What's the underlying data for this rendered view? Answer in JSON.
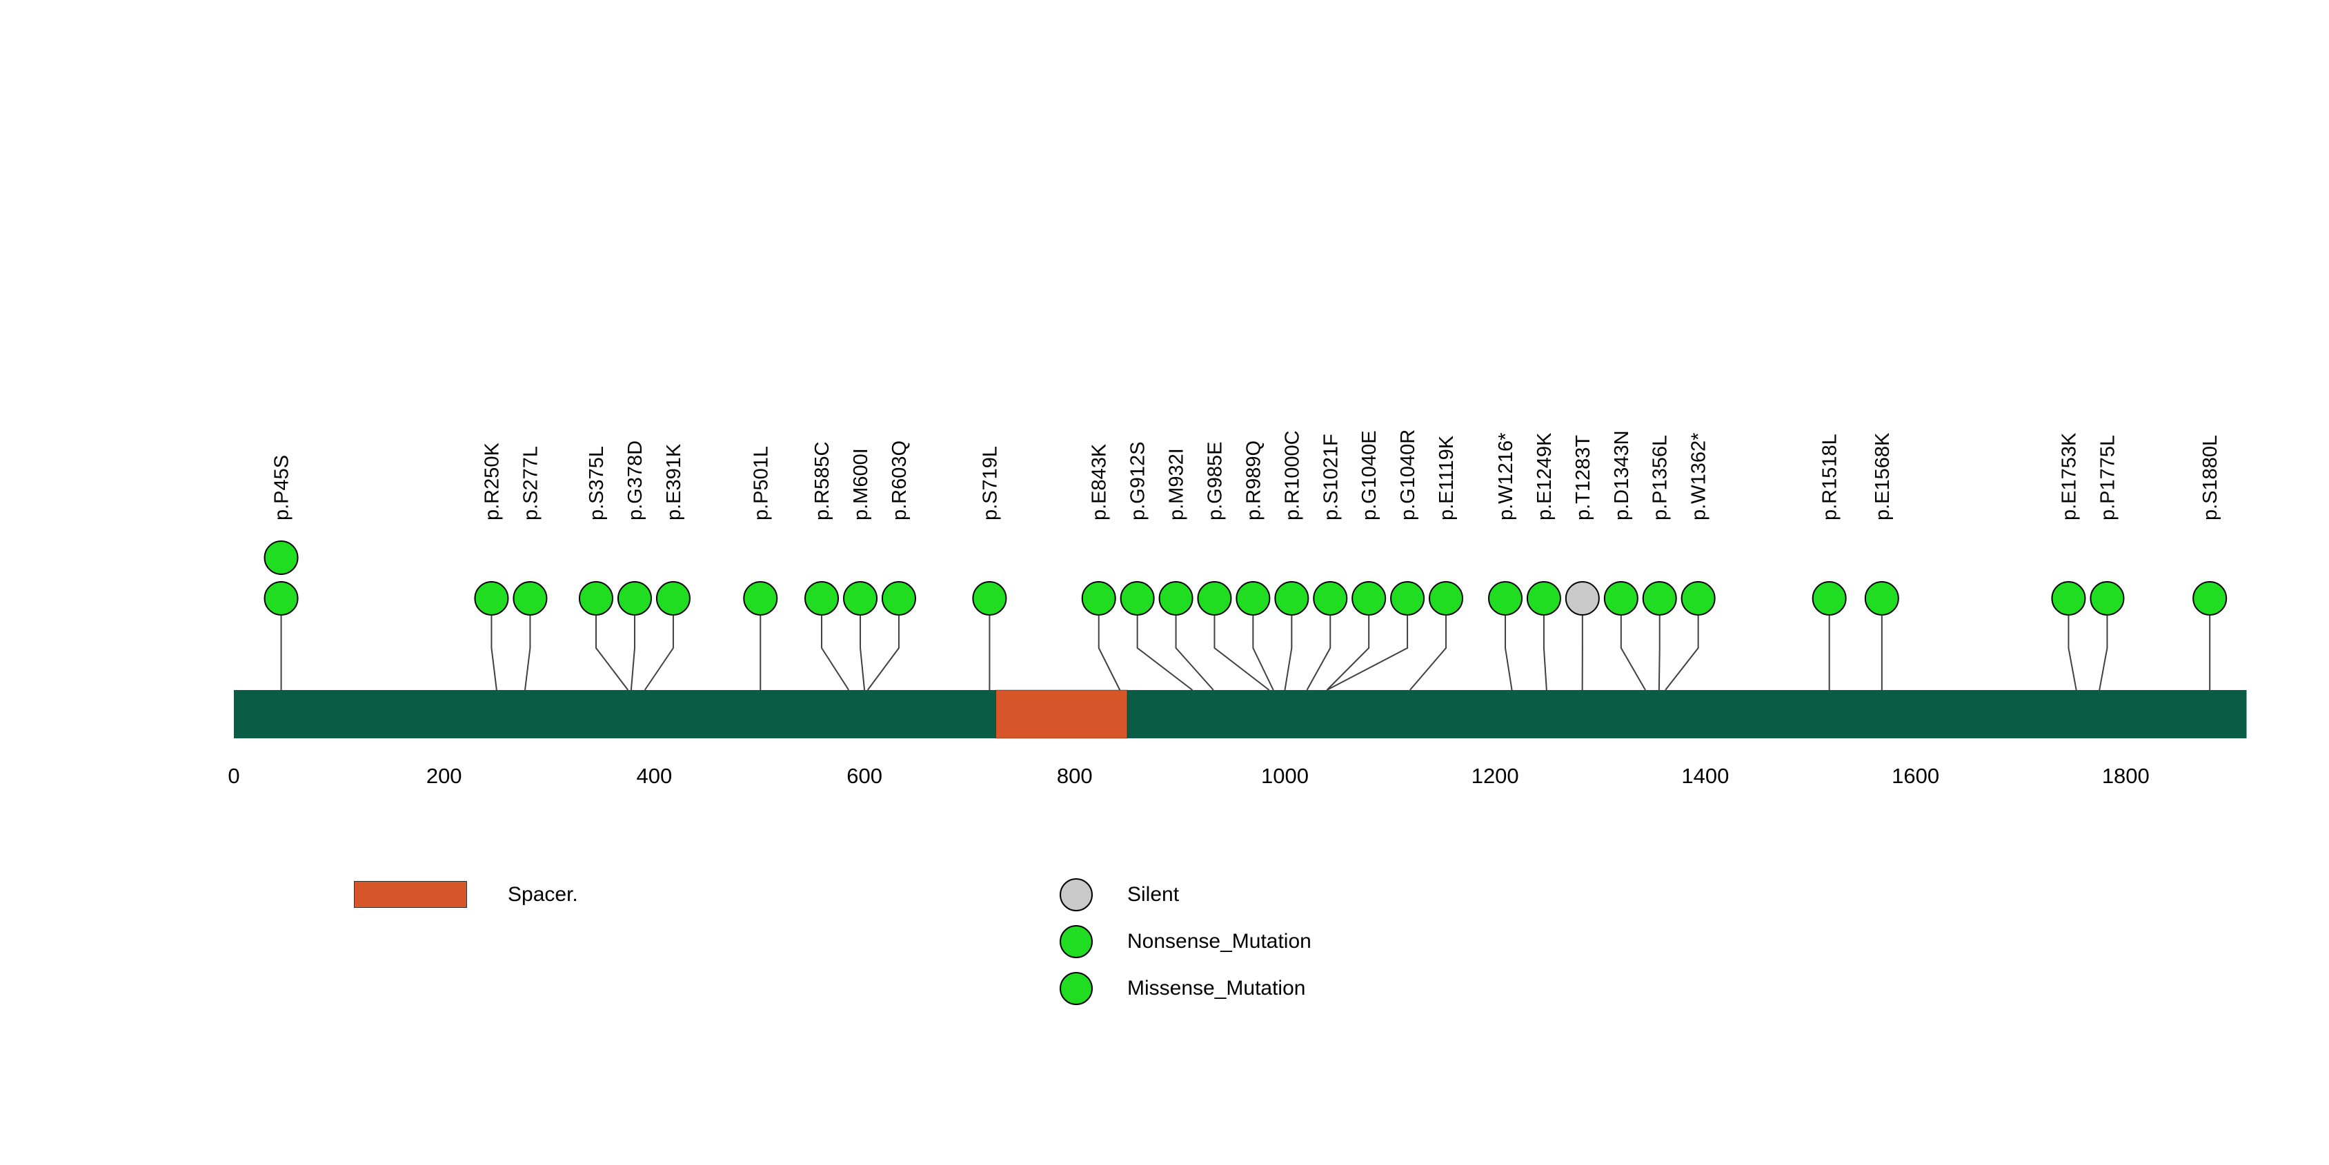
{
  "chart_data": {
    "type": "lollipop",
    "title": "",
    "xlabel": "",
    "ylabel": "",
    "grid": false,
    "axis_range": [
      0,
      1915
    ],
    "x_ticks": [
      0,
      200,
      400,
      600,
      800,
      1000,
      1200,
      1400,
      1600,
      1800
    ],
    "protein": {
      "start": 0,
      "length": 1915,
      "backbone_color": "#0A5C44",
      "domains": [
        {
          "name": "Spacer.",
          "start": 725,
          "end": 850,
          "color": "#D65529"
        }
      ]
    },
    "mutation_classes": {
      "Missense_Mutation": "#21DD21",
      "Nonsense_Mutation": "#21DD21",
      "Silent": "#C9C9C9"
    },
    "mutations": [
      {
        "label": "p.P45S",
        "pos": 45,
        "count": 2,
        "class": "Missense_Mutation"
      },
      {
        "label": "p.R250K",
        "pos": 250,
        "count": 1,
        "class": "Missense_Mutation"
      },
      {
        "label": "p.S277L",
        "pos": 277,
        "count": 1,
        "class": "Missense_Mutation"
      },
      {
        "label": "p.S375L",
        "pos": 375,
        "count": 1,
        "class": "Missense_Mutation"
      },
      {
        "label": "p.G378D",
        "pos": 378,
        "count": 1,
        "class": "Missense_Mutation"
      },
      {
        "label": "p.E391K",
        "pos": 391,
        "count": 1,
        "class": "Missense_Mutation"
      },
      {
        "label": "p.P501L",
        "pos": 501,
        "count": 1,
        "class": "Missense_Mutation"
      },
      {
        "label": "p.R585C",
        "pos": 585,
        "count": 1,
        "class": "Missense_Mutation"
      },
      {
        "label": "p.M600I",
        "pos": 600,
        "count": 1,
        "class": "Missense_Mutation"
      },
      {
        "label": "p.R603Q",
        "pos": 603,
        "count": 1,
        "class": "Missense_Mutation"
      },
      {
        "label": "p.S719L",
        "pos": 719,
        "count": 1,
        "class": "Missense_Mutation"
      },
      {
        "label": "p.E843K",
        "pos": 843,
        "count": 1,
        "class": "Missense_Mutation"
      },
      {
        "label": "p.G912S",
        "pos": 912,
        "count": 1,
        "class": "Missense_Mutation"
      },
      {
        "label": "p.M932I",
        "pos": 932,
        "count": 1,
        "class": "Missense_Mutation"
      },
      {
        "label": "p.G985E",
        "pos": 985,
        "count": 1,
        "class": "Missense_Mutation"
      },
      {
        "label": "p.R989Q",
        "pos": 989,
        "count": 1,
        "class": "Missense_Mutation"
      },
      {
        "label": "p.R1000C",
        "pos": 1000,
        "count": 1,
        "class": "Missense_Mutation"
      },
      {
        "label": "p.S1021F",
        "pos": 1021,
        "count": 1,
        "class": "Missense_Mutation"
      },
      {
        "label": "p.G1040E",
        "pos": 1040,
        "count": 1,
        "class": "Missense_Mutation"
      },
      {
        "label": "p.G1040R",
        "pos": 1040,
        "count": 1,
        "class": "Missense_Mutation"
      },
      {
        "label": "p.E1119K",
        "pos": 1119,
        "count": 1,
        "class": "Missense_Mutation"
      },
      {
        "label": "p.W1216*",
        "pos": 1216,
        "count": 1,
        "class": "Nonsense_Mutation"
      },
      {
        "label": "p.E1249K",
        "pos": 1249,
        "count": 1,
        "class": "Missense_Mutation"
      },
      {
        "label": "p.T1283T",
        "pos": 1283,
        "count": 1,
        "class": "Silent"
      },
      {
        "label": "p.D1343N",
        "pos": 1343,
        "count": 1,
        "class": "Missense_Mutation"
      },
      {
        "label": "p.P1356L",
        "pos": 1356,
        "count": 1,
        "class": "Missense_Mutation"
      },
      {
        "label": "p.W1362*",
        "pos": 1362,
        "count": 1,
        "class": "Nonsense_Mutation"
      },
      {
        "label": "p.R1518L",
        "pos": 1518,
        "count": 1,
        "class": "Missense_Mutation"
      },
      {
        "label": "p.E1568K",
        "pos": 1568,
        "count": 1,
        "class": "Missense_Mutation"
      },
      {
        "label": "p.E1753K",
        "pos": 1753,
        "count": 1,
        "class": "Missense_Mutation"
      },
      {
        "label": "p.P1775L",
        "pos": 1775,
        "count": 1,
        "class": "Missense_Mutation"
      },
      {
        "label": "p.S1880L",
        "pos": 1880,
        "count": 1,
        "class": "Missense_Mutation"
      }
    ],
    "legend": {
      "domain_items": [
        {
          "label": "Spacer.",
          "color": "#D65529",
          "shape": "rect"
        }
      ],
      "class_items": [
        {
          "label": "Silent",
          "color": "#C9C9C9",
          "shape": "circle"
        },
        {
          "label": "Nonsense_Mutation",
          "color": "#21DD21",
          "shape": "circle"
        },
        {
          "label": "Missense_Mutation",
          "color": "#21DD21",
          "shape": "circle"
        }
      ]
    }
  }
}
